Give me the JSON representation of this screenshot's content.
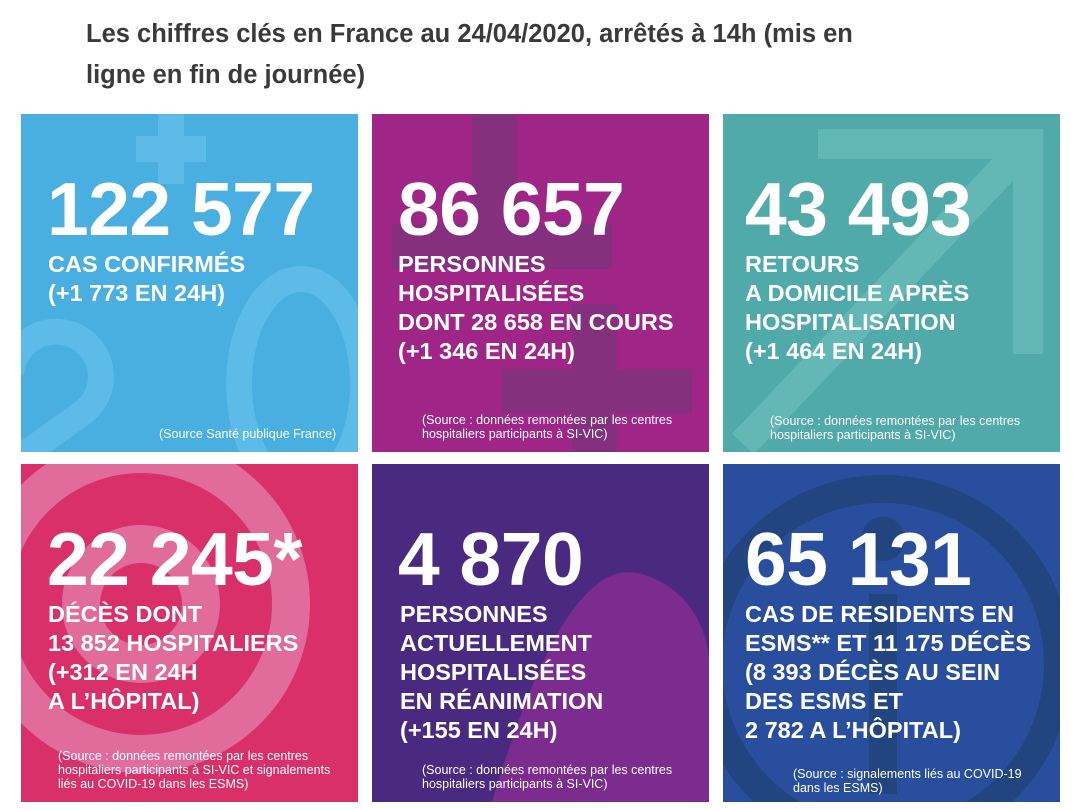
{
  "header": {
    "title_line1": "Les chiffres clés en France au 24/04/2020, arrêtés à 14h (mis en",
    "title_line2": "ligne en fin de journée)"
  },
  "colors": {
    "cas": "#49aee0",
    "hospitalisees": "#9f2586",
    "retours": "#51aaaa",
    "deces": "#d9306a",
    "reanimation": "#4a2a80",
    "esms": "#294e9e"
  },
  "tiles": [
    {
      "number": "122 577",
      "label_lines": [
        "CAS CONFIRMÉS",
        "(+1 773 EN 24H)"
      ],
      "source_lines": [
        "(Source Santé publique France)"
      ]
    },
    {
      "number": "86 657",
      "label_lines": [
        "PERSONNES",
        "HOSPITALISÉES",
        "DONT 28 658 EN COURS",
        "(+1 346 EN 24H)"
      ],
      "source_lines": [
        "(Source : données remontées par les centres",
        "hospitaliers participants à SI-VIC)"
      ]
    },
    {
      "number": "43 493",
      "label_lines": [
        "RETOURS",
        "A DOMICILE APRÈS",
        "HOSPITALISATION",
        "(+1 464 EN 24H)"
      ],
      "source_lines": [
        "(Source : données remontées par les centres",
        "hospitaliers participants à SI-VIC)"
      ]
    },
    {
      "number": "22 245*",
      "label_lines": [
        "DÉCÈS DONT",
        "13 852 HOSPITALIERS",
        "(+312 EN 24H",
        "A L’HÔPITAL)"
      ],
      "source_lines": [
        "(Source : données remontées par les centres",
        "hospitaliers participants à SI-VIC et signalements",
        "liés au COVID-19 dans les ESMS)"
      ]
    },
    {
      "number": "4 870",
      "label_lines": [
        "PERSONNES",
        "ACTUELLEMENT",
        "HOSPITALISÉES",
        "EN RÉANIMATION",
        "(+155 EN 24H)"
      ],
      "source_lines": [
        "(Source : données remontées par les centres",
        "hospitaliers participants à SI-VIC)"
      ]
    },
    {
      "number": "65 131",
      "label_lines": [
        "CAS DE RESIDENTS EN",
        "ESMS** ET 11 175 DÉCÈS",
        "(8 393 DÉCÈS AU SEIN",
        "DES ESMS ET",
        "2 782 A L’HÔPITAL)"
      ],
      "source_lines": [
        "(Source : signalements liés au COVID-19",
        "dans les ESMS)"
      ]
    }
  ]
}
